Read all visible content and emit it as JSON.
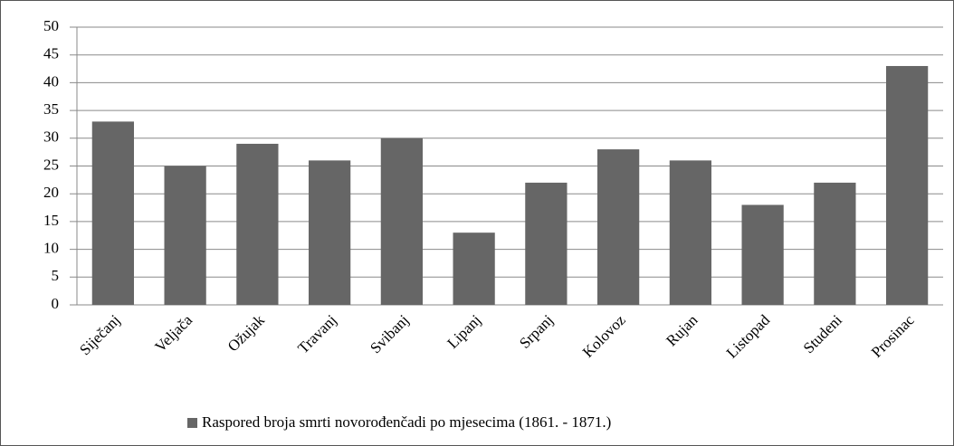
{
  "chart_data": {
    "type": "bar",
    "categories": [
      "Siječanj",
      "Veljača",
      "Ožujak",
      "Travanj",
      "Svibanj",
      "Lipanj",
      "Srpanj",
      "Kolovoz",
      "Rujan",
      "Listopad",
      "Studeni",
      "Prosinac"
    ],
    "series": [
      {
        "name": "Raspored broja smrti novorođenčadi po mjesecima (1861. - 1871.)",
        "color": "#666666",
        "values": [
          33,
          25,
          29,
          26,
          30,
          13,
          22,
          28,
          26,
          18,
          22,
          43
        ]
      }
    ],
    "ylim": [
      0,
      50
    ],
    "yticks": [
      0,
      5,
      10,
      15,
      20,
      25,
      30,
      35,
      40,
      45,
      50
    ],
    "grid": true,
    "legend": "bottom"
  }
}
